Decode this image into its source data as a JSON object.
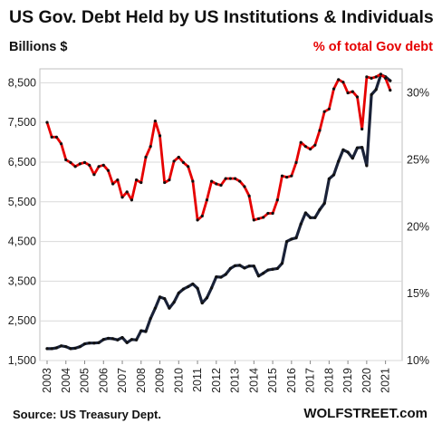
{
  "chart_data": {
    "type": "line",
    "title": "US Gov. Debt Held by US Institutions  & Individuals",
    "ylabel_left": "Billions  $",
    "ylabel_right": "% of total Gov debt",
    "source": "Source: US Treasury Dept.",
    "brand": "WOLFSTREET.com",
    "x_ticks": [
      "2003",
      "2004",
      "2005",
      "2006",
      "2007",
      "2008",
      "2009",
      "2010",
      "2011",
      "2012",
      "2013",
      "2014",
      "2015",
      "2016",
      "2017",
      "2018",
      "2019",
      "2020",
      "2021"
    ],
    "y_left": {
      "ticks": [
        "1,500",
        "2,500",
        "3,500",
        "4,500",
        "5,500",
        "6,500",
        "7,500",
        "8,500"
      ],
      "range": [
        1500,
        8850
      ]
    },
    "y_right": {
      "ticks": [
        "10%",
        "15%",
        "20%",
        "25%",
        "30%"
      ],
      "range": [
        10,
        31.8
      ]
    },
    "colors": {
      "billions": "#1a2238",
      "percent": "#e60000",
      "marker": "#111111",
      "grid": "#d9d9d9"
    },
    "series": [
      {
        "axis": "left",
        "x": [
          2003.0,
          2003.25,
          2003.5,
          2003.75,
          2004.0,
          2004.25,
          2004.5,
          2004.75,
          2005.0,
          2005.25,
          2005.5,
          2005.75,
          2006.0,
          2006.25,
          2006.5,
          2006.75,
          2007.0,
          2007.25,
          2007.5,
          2007.75,
          2008.0,
          2008.25,
          2008.5,
          2008.75,
          2009.0,
          2009.25,
          2009.5,
          2009.75,
          2010.0,
          2010.25,
          2010.5,
          2010.75,
          2011.0,
          2011.25,
          2011.5,
          2011.75,
          2012.0,
          2012.25,
          2012.5,
          2012.75,
          2013.0,
          2013.25,
          2013.5,
          2013.75,
          2014.0,
          2014.25,
          2014.5,
          2014.75,
          2015.0,
          2015.25,
          2015.5,
          2015.75,
          2016.0,
          2016.25,
          2016.5,
          2016.75,
          2017.0,
          2017.25,
          2017.5,
          2017.75,
          2018.0,
          2018.25,
          2018.5,
          2018.75,
          2019.0,
          2019.25,
          2019.5,
          2019.75,
          2020.0,
          2020.25,
          2020.5,
          2020.75,
          2021.0,
          2021.25
        ],
        "values": [
          1800,
          1800,
          1820,
          1870,
          1850,
          1800,
          1810,
          1850,
          1920,
          1940,
          1940,
          1950,
          2030,
          2060,
          2050,
          2020,
          2080,
          1950,
          2030,
          2020,
          2250,
          2230,
          2560,
          2820,
          3100,
          3060,
          2820,
          2970,
          3200,
          3300,
          3360,
          3430,
          3320,
          2950,
          3080,
          3330,
          3610,
          3600,
          3670,
          3820,
          3890,
          3900,
          3830,
          3880,
          3880,
          3630,
          3700,
          3780,
          3800,
          3820,
          3950,
          4500,
          4560,
          4590,
          4940,
          5220,
          5100,
          5100,
          5300,
          5460,
          6080,
          6180,
          6520,
          6810,
          6750,
          6600,
          6860,
          6870,
          6410,
          8200,
          8330,
          8700,
          8650,
          8550
        ]
      },
      {
        "axis": "right",
        "x": [
          2003.0,
          2003.25,
          2003.5,
          2003.75,
          2004.0,
          2004.25,
          2004.5,
          2004.75,
          2005.0,
          2005.25,
          2005.5,
          2005.75,
          2006.0,
          2006.25,
          2006.5,
          2006.75,
          2007.0,
          2007.25,
          2007.5,
          2007.75,
          2008.0,
          2008.25,
          2008.5,
          2008.75,
          2009.0,
          2009.25,
          2009.5,
          2009.75,
          2010.0,
          2010.25,
          2010.5,
          2010.75,
          2011.0,
          2011.25,
          2011.5,
          2011.75,
          2012.0,
          2012.25,
          2012.5,
          2012.75,
          2013.0,
          2013.25,
          2013.5,
          2013.75,
          2014.0,
          2014.25,
          2014.5,
          2014.75,
          2015.0,
          2015.25,
          2015.5,
          2015.75,
          2016.0,
          2016.25,
          2016.5,
          2016.75,
          2017.0,
          2017.25,
          2017.5,
          2017.75,
          2018.0,
          2018.25,
          2018.5,
          2018.75,
          2019.0,
          2019.25,
          2019.5,
          2019.75,
          2020.0,
          2020.25,
          2020.5,
          2020.75,
          2021.0,
          2021.25
        ],
        "values": [
          27.8,
          26.7,
          26.7,
          26.2,
          25.0,
          24.8,
          24.5,
          24.7,
          24.8,
          24.6,
          23.9,
          24.5,
          24.6,
          24.2,
          23.2,
          23.5,
          22.2,
          22.6,
          22.0,
          23.5,
          23.3,
          25.2,
          26.0,
          27.9,
          26.8,
          23.3,
          23.5,
          24.9,
          25.2,
          24.8,
          24.5,
          23.4,
          20.5,
          20.8,
          22.0,
          23.4,
          23.2,
          23.1,
          23.6,
          23.6,
          23.6,
          23.4,
          23.0,
          22.3,
          20.5,
          20.6,
          20.7,
          21.0,
          21.0,
          22.0,
          23.8,
          23.7,
          23.8,
          24.8,
          26.3,
          26.0,
          25.8,
          26.1,
          27.2,
          28.6,
          28.8,
          30.3,
          31.0,
          30.8,
          30.0,
          30.1,
          29.7,
          27.3,
          31.2,
          31.1,
          31.2,
          31.4,
          31.1,
          30.2
        ]
      }
    ],
    "grid": true
  }
}
